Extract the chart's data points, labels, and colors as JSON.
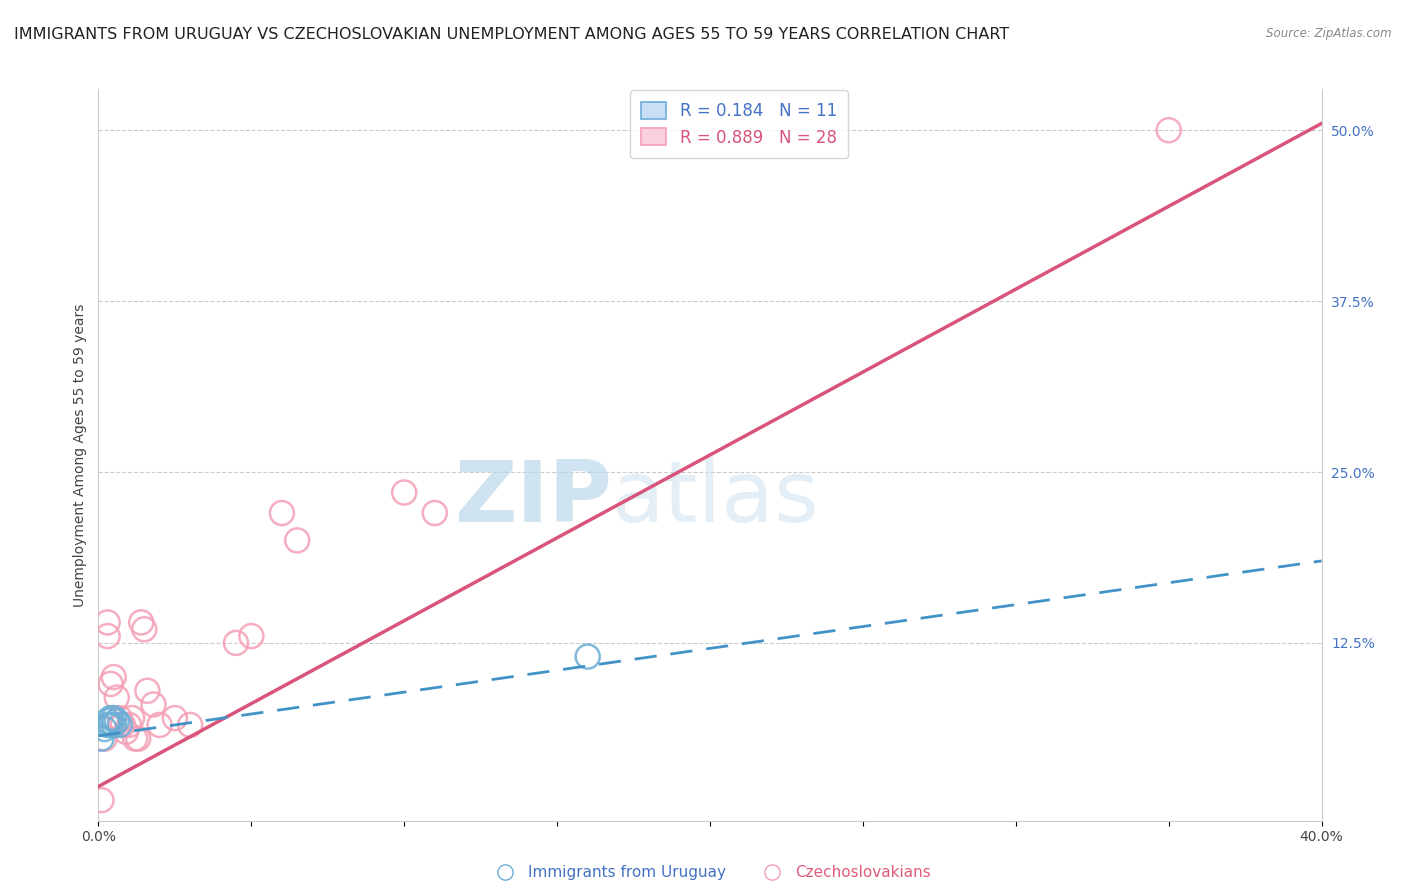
{
  "title": "IMMIGRANTS FROM URUGUAY VS CZECHOSLOVAKIAN UNEMPLOYMENT AMONG AGES 55 TO 59 YEARS CORRELATION CHART",
  "source": "Source: ZipAtlas.com",
  "ylabel": "Unemployment Among Ages 55 to 59 years",
  "xlim": [
    0.0,
    0.4
  ],
  "ylim": [
    -0.005,
    0.53
  ],
  "xtick_positions": [
    0.0,
    0.05,
    0.1,
    0.15,
    0.2,
    0.25,
    0.3,
    0.35,
    0.4
  ],
  "xticklabels": [
    "0.0%",
    "",
    "",
    "",
    "",
    "",
    "",
    "",
    "40.0%"
  ],
  "yticks_right": [
    0.0,
    0.125,
    0.25,
    0.375,
    0.5
  ],
  "ytick_right_labels": [
    "",
    "12.5%",
    "25.0%",
    "37.5%",
    "50.0%"
  ],
  "grid_color": "#cccccc",
  "background_color": "#ffffff",
  "blue_label": "Immigrants from Uruguay",
  "pink_label": "Czechoslovakians",
  "blue_R": 0.184,
  "blue_N": 11,
  "pink_R": 0.889,
  "pink_N": 28,
  "blue_color": "#6baed6",
  "pink_color": "#f4a0b5",
  "blue_line_color": "#4292c6",
  "pink_line_color": "#d9547a",
  "blue_points_x": [
    0.001,
    0.002,
    0.003,
    0.003,
    0.004,
    0.004,
    0.005,
    0.005,
    0.006,
    0.007,
    0.16
  ],
  "blue_points_y": [
    0.055,
    0.062,
    0.065,
    0.068,
    0.065,
    0.07,
    0.065,
    0.07,
    0.068,
    0.065,
    0.115
  ],
  "pink_points_x": [
    0.001,
    0.002,
    0.003,
    0.003,
    0.004,
    0.005,
    0.006,
    0.007,
    0.008,
    0.009,
    0.01,
    0.011,
    0.012,
    0.013,
    0.014,
    0.015,
    0.016,
    0.018,
    0.02,
    0.025,
    0.03,
    0.045,
    0.05,
    0.06,
    0.065,
    0.1,
    0.11,
    0.35
  ],
  "pink_points_y": [
    0.01,
    0.055,
    0.13,
    0.14,
    0.095,
    0.1,
    0.085,
    0.07,
    0.065,
    0.06,
    0.065,
    0.07,
    0.055,
    0.055,
    0.14,
    0.135,
    0.09,
    0.08,
    0.065,
    0.07,
    0.065,
    0.125,
    0.13,
    0.22,
    0.2,
    0.235,
    0.22,
    0.5
  ],
  "pink_line_x0": 0.0,
  "pink_line_y0": 0.02,
  "pink_line_x1": 0.4,
  "pink_line_y1": 0.505,
  "blue_line_x0": 0.0,
  "blue_line_y0": 0.057,
  "blue_line_x1": 0.4,
  "blue_line_y1": 0.185,
  "watermark_zip": "ZIP",
  "watermark_atlas": "atlas",
  "title_fontsize": 11.5,
  "axis_fontsize": 10,
  "tick_fontsize": 10
}
